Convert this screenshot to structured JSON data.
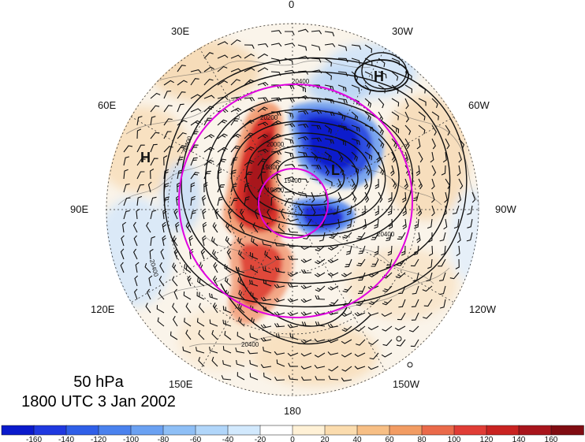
{
  "caption": {
    "level": "50 hPa",
    "time": "1800 UTC 3 Jan 2002"
  },
  "longitude_labels": [
    {
      "text": "0",
      "angle": 0
    },
    {
      "text": "30W",
      "angle": 30
    },
    {
      "text": "60W",
      "angle": 60
    },
    {
      "text": "90W",
      "angle": 90
    },
    {
      "text": "120W",
      "angle": 120
    },
    {
      "text": "150W",
      "angle": 150
    },
    {
      "text": "180",
      "angle": 180
    },
    {
      "text": "150E",
      "angle": 210
    },
    {
      "text": "120E",
      "angle": 240
    },
    {
      "text": "90E",
      "angle": 270
    },
    {
      "text": "60E",
      "angle": 300
    },
    {
      "text": "30E",
      "angle": 330
    }
  ],
  "pressure_centers": [
    {
      "symbol": "H",
      "circled": true
    },
    {
      "symbol": "H",
      "circled": false
    },
    {
      "symbol": "L",
      "circled": false
    }
  ],
  "contour_labels": [
    "20400",
    "20400",
    "20400",
    "20400",
    "19800",
    "19800",
    "20200",
    "20000",
    "20400",
    "19400"
  ],
  "colorbar": {
    "ticks": [
      "-160",
      "-140",
      "-120",
      "-100",
      "-80",
      "-60",
      "-40",
      "-20",
      "0",
      "20",
      "40",
      "60",
      "80",
      "100",
      "120",
      "140",
      "160"
    ],
    "colors": [
      "#0a1acc",
      "#1f39e0",
      "#2f5fe8",
      "#4a82ee",
      "#6aa1f2",
      "#8ebff6",
      "#b1d6fa",
      "#d2e9fd",
      "#ffffff",
      "#fff1d6",
      "#fbdcae",
      "#f7bf85",
      "#f29c63",
      "#ea6a4a",
      "#e03d36",
      "#c92321",
      "#a8151c",
      "#800c12"
    ]
  },
  "colors": {
    "magenta": "#e000e0",
    "warm": "#cc1818",
    "cold": "#1d2bd8"
  }
}
